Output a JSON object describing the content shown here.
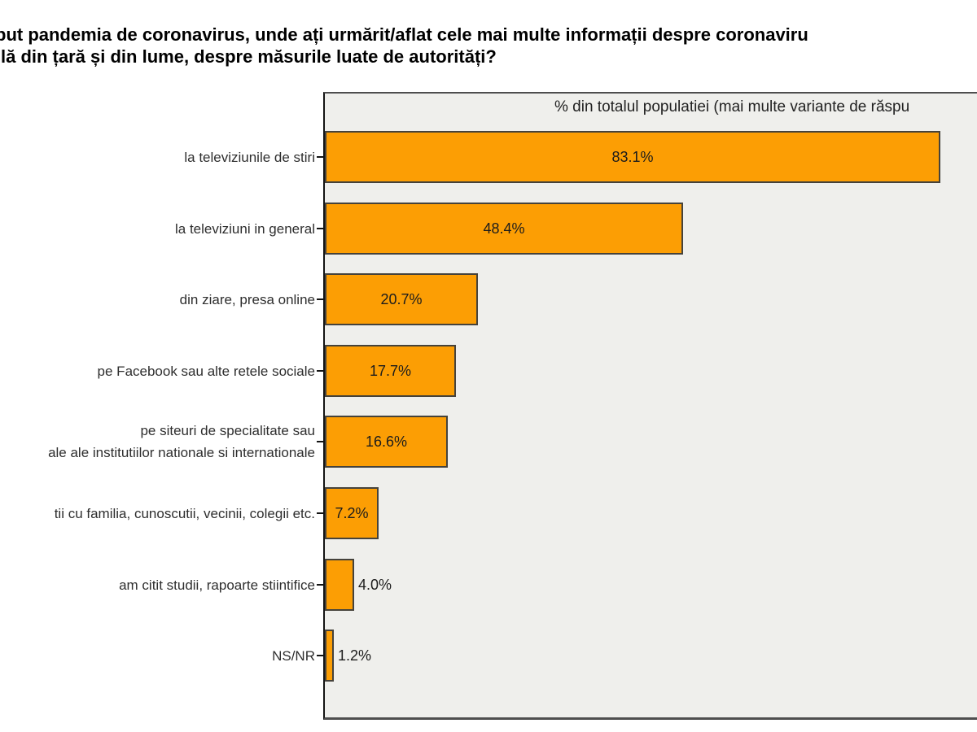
{
  "page_title": {
    "line1": "put pandemia de coronavirus, unde ați urmărit/aflat cele mai multe informații despre coronaviru",
    "line2": "lă din țară și din lume, despre măsurile luate de autorități?"
  },
  "chart_data": {
    "type": "bar",
    "orientation": "horizontal",
    "title": "put pandemia de coronavirus, unde ați urmărit/aflat cele mai multe informații despre coronaviru / lă din țară și din lume, despre măsurile luate de autorități?",
    "note": "% din totalul populatiei (mai multe variante de răspu",
    "categories": [
      "la televiziunile de stiri",
      "la televiziuni in general",
      "din ziare, presa online",
      "pe Facebook sau alte retele sociale",
      "pe siteuri de specialitate sau\nale ale institutiilor nationale si internationale",
      "tii cu familia, cunoscutii, vecinii, colegii etc.",
      "am citit studii, rapoarte stiintifice",
      "NS/NR"
    ],
    "values": [
      83.1,
      48.4,
      20.7,
      17.7,
      16.6,
      7.2,
      4.0,
      1.2
    ],
    "value_labels": [
      "83.1%",
      "48.4%",
      "20.7%",
      "17.7%",
      "16.6%",
      "7.2%",
      "4.0%",
      "1.2%"
    ],
    "xlabel": "",
    "ylabel": "",
    "xlim": [
      0,
      88
    ],
    "grid": false,
    "legend": null,
    "colors": {
      "bar_fill": "#FC9E04",
      "bar_border": "#45423B",
      "plot_bg": "#EFEFEC",
      "plot_border": "#4E4E4E",
      "axis_line": "#141414",
      "text": "#1C1C1C"
    }
  }
}
